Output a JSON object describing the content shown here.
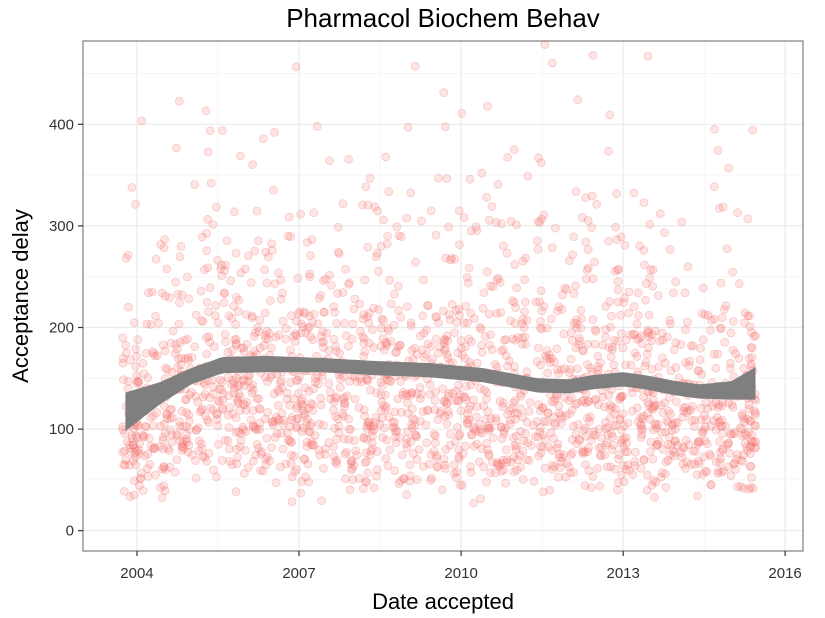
{
  "chart_data": {
    "type": "scatter",
    "title": "Pharmacol Biochem Behav",
    "xlabel": "Date accepted",
    "ylabel": "Acceptance delay",
    "x_is_date": true,
    "xlim": [
      "2003-01-01",
      "2016-05-01"
    ],
    "ylim": [
      -20,
      482
    ],
    "x_ticks": [
      "2004-01-01",
      "2007-01-01",
      "2010-01-01",
      "2013-01-01",
      "2016-01-01"
    ],
    "x_tick_labels": [
      "2004",
      "2007",
      "2010",
      "2013",
      "2016"
    ],
    "y_ticks": [
      0,
      100,
      200,
      300,
      400
    ],
    "y_tick_labels": [
      "0",
      "100",
      "200",
      "300",
      "400"
    ],
    "grid": true,
    "legend": "none",
    "colors": {
      "points": "#f8766d",
      "points_stroke": "#e8545a",
      "smooth_band": "#7f7f7f",
      "grid_major": "#ebebeb",
      "grid_minor": "#f5f5f5",
      "panel_border": "#7f7f7f"
    },
    "smooth": {
      "x": [
        "2003-10-15",
        "2004-06-01",
        "2005-01-01",
        "2005-08-01",
        "2006-06-01",
        "2007-06-01",
        "2008-06-01",
        "2009-06-01",
        "2010-06-01",
        "2011-06-01",
        "2012-01-01",
        "2012-06-01",
        "2013-01-01",
        "2013-06-01",
        "2014-01-01",
        "2014-06-01",
        "2015-01-01",
        "2015-06-15"
      ],
      "y": [
        117,
        135,
        152,
        163,
        164,
        163,
        160,
        158,
        153,
        143,
        142,
        146,
        149,
        146,
        140,
        137,
        138,
        145
      ],
      "band_half_width": [
        19,
        11,
        8,
        8,
        8,
        7,
        7,
        7,
        7,
        7,
        7,
        7,
        7,
        7,
        7,
        7,
        9,
        16
      ]
    },
    "points": {
      "x_start": "2003-09-25",
      "x_end": "2015-06-20",
      "count": 2100,
      "density_note": "",
      "series_name": ""
    }
  }
}
